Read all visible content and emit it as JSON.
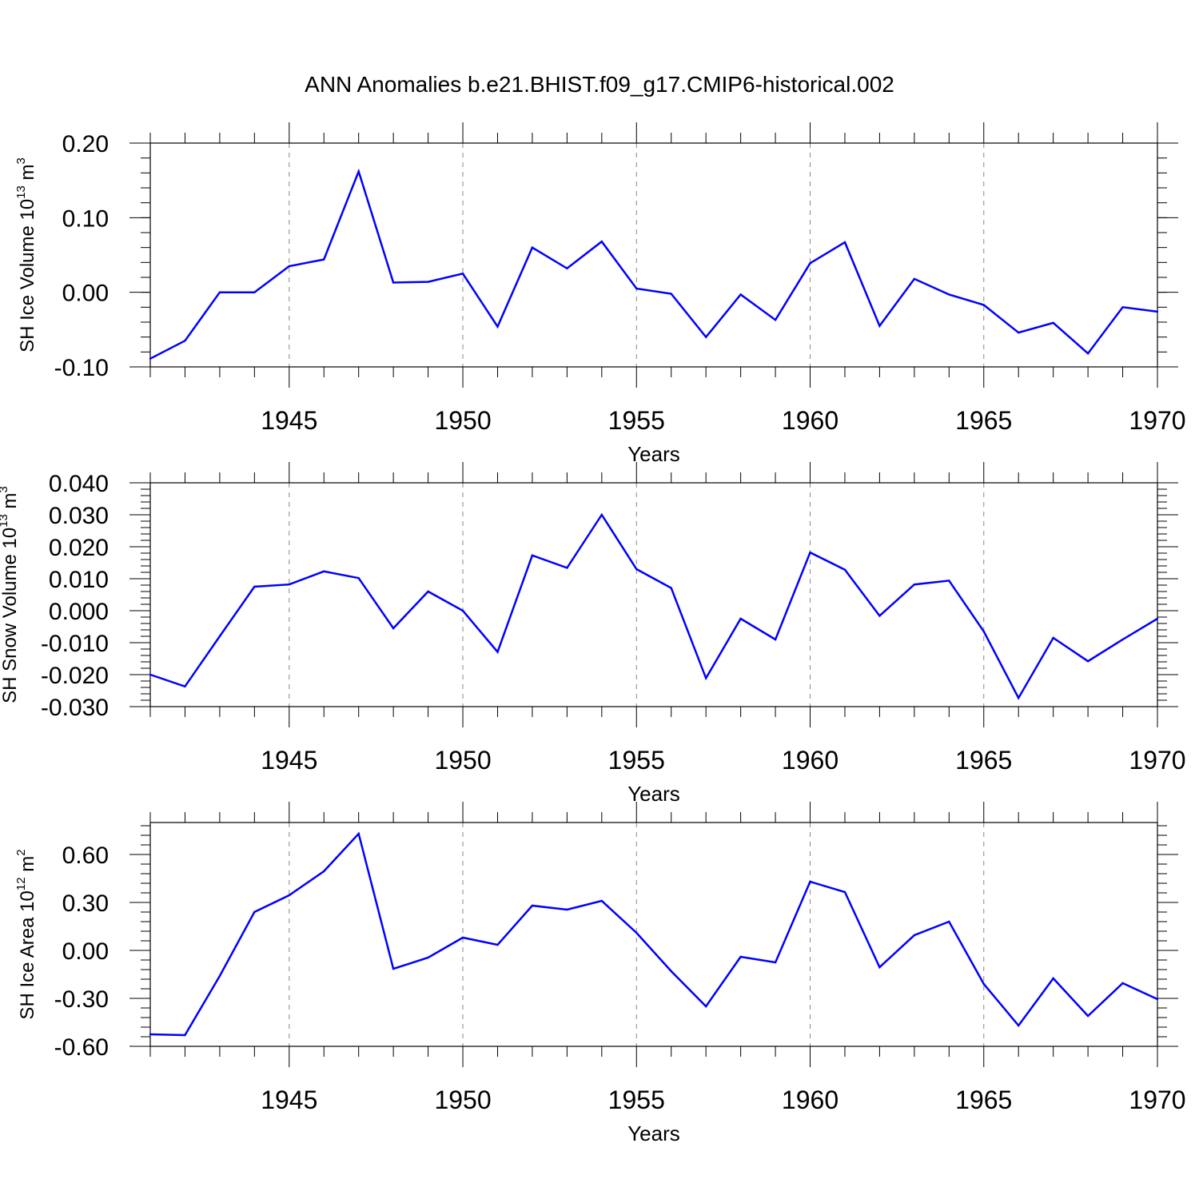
{
  "figure": {
    "title": "ANN Anomalies b.e21.BHIST.f09_g17.CMIP6-historical.002",
    "line_color": "#0000ff"
  },
  "chart_data": [
    {
      "type": "line",
      "ylabel": {
        "prefix": "SH Ice Volume 10",
        "exp1": "13",
        "mid": " m",
        "exp2": "3"
      },
      "xlabel": "Years",
      "xlim": [
        1941,
        1970
      ],
      "ylim": [
        -0.1,
        0.2
      ],
      "yticks": [
        -0.1,
        0.0,
        0.1,
        0.2
      ],
      "ytick_labels": [
        "-0.10",
        "0.00",
        "0.10",
        "0.20"
      ],
      "yminor_step": 0.02,
      "xticks": [
        1945,
        1950,
        1955,
        1960,
        1965,
        1970
      ],
      "xtick_labels": [
        "1945",
        "1950",
        "1955",
        "1960",
        "1965",
        "1970"
      ],
      "grid": "vertical dashed at major x ticks",
      "series": [
        {
          "name": "SH Ice Volume",
          "x": [
            1941,
            1942,
            1943,
            1944,
            1945,
            1946,
            1947,
            1948,
            1949,
            1950,
            1951,
            1952,
            1953,
            1954,
            1955,
            1956,
            1957,
            1958,
            1959,
            1960,
            1961,
            1962,
            1963,
            1964,
            1965,
            1966,
            1967,
            1968,
            1969,
            1970
          ],
          "values": [
            -0.089,
            -0.065,
            0.0,
            0.0,
            0.035,
            0.044,
            0.162,
            0.013,
            0.014,
            0.025,
            -0.046,
            0.06,
            0.032,
            0.068,
            0.005,
            -0.002,
            -0.06,
            -0.003,
            -0.037,
            0.039,
            0.067,
            -0.045,
            0.018,
            -0.003,
            -0.017,
            -0.054,
            -0.041,
            -0.082,
            -0.02,
            -0.026
          ]
        }
      ]
    },
    {
      "type": "line",
      "ylabel": {
        "prefix": "SH Snow Volume 10",
        "exp1": "13",
        "mid": " m",
        "exp2": "3"
      },
      "xlabel": "Years",
      "xlim": [
        1941,
        1970
      ],
      "ylim": [
        -0.03,
        0.04
      ],
      "yticks": [
        -0.03,
        -0.02,
        -0.01,
        0.0,
        0.01,
        0.02,
        0.03,
        0.04
      ],
      "ytick_labels": [
        "-0.030",
        "-0.020",
        "-0.010",
        "0.000",
        "0.010",
        "0.020",
        "0.030",
        "0.040"
      ],
      "yminor_step": 0.002,
      "xticks": [
        1945,
        1950,
        1955,
        1960,
        1965,
        1970
      ],
      "xtick_labels": [
        "1945",
        "1950",
        "1955",
        "1960",
        "1965",
        "1970"
      ],
      "grid": "vertical dashed at major x ticks",
      "series": [
        {
          "name": "SH Snow Volume",
          "x": [
            1941,
            1942,
            1943,
            1944,
            1945,
            1946,
            1947,
            1948,
            1949,
            1950,
            1951,
            1952,
            1953,
            1954,
            1955,
            1956,
            1957,
            1958,
            1959,
            1960,
            1961,
            1962,
            1963,
            1964,
            1965,
            1966,
            1967,
            1968,
            1969,
            1970
          ],
          "values": [
            -0.02,
            -0.0237,
            -0.008,
            0.0075,
            0.0082,
            0.0123,
            0.0102,
            -0.0055,
            0.006,
            0.0,
            -0.0129,
            0.0173,
            0.0134,
            0.03,
            0.013,
            0.0071,
            -0.0211,
            -0.0025,
            -0.009,
            0.0182,
            0.0128,
            -0.0016,
            0.0082,
            0.0094,
            -0.0065,
            -0.0273,
            -0.0085,
            -0.0158,
            -0.009,
            -0.0025
          ]
        }
      ]
    },
    {
      "type": "line",
      "ylabel": {
        "prefix": "SH Ice Area 10",
        "exp1": "12",
        "mid": " m",
        "exp2": "2"
      },
      "xlabel": "Years",
      "xlim": [
        1941,
        1970
      ],
      "ylim": [
        -0.6,
        0.8
      ],
      "yticks": [
        -0.6,
        -0.3,
        0.0,
        0.3,
        0.6
      ],
      "ytick_labels": [
        "-0.60",
        "-0.30",
        "0.00",
        "0.30",
        "0.60"
      ],
      "yminor_step": 0.06,
      "xticks": [
        1945,
        1950,
        1955,
        1960,
        1965,
        1970
      ],
      "xtick_labels": [
        "1945",
        "1950",
        "1955",
        "1960",
        "1965",
        "1970"
      ],
      "grid": "vertical dashed at major x ticks",
      "series": [
        {
          "name": "SH Ice Area",
          "x": [
            1941,
            1942,
            1943,
            1944,
            1945,
            1946,
            1947,
            1948,
            1949,
            1950,
            1951,
            1952,
            1953,
            1954,
            1955,
            1956,
            1957,
            1958,
            1959,
            1960,
            1961,
            1962,
            1963,
            1964,
            1965,
            1966,
            1967,
            1968,
            1969,
            1970
          ],
          "values": [
            -0.525,
            -0.53,
            -0.16,
            0.24,
            0.345,
            0.495,
            0.73,
            -0.115,
            -0.045,
            0.08,
            0.035,
            0.28,
            0.255,
            0.31,
            0.11,
            -0.13,
            -0.35,
            -0.04,
            -0.075,
            0.43,
            0.365,
            -0.105,
            0.095,
            0.18,
            -0.21,
            -0.47,
            -0.175,
            -0.41,
            -0.205,
            -0.305
          ]
        }
      ]
    }
  ]
}
